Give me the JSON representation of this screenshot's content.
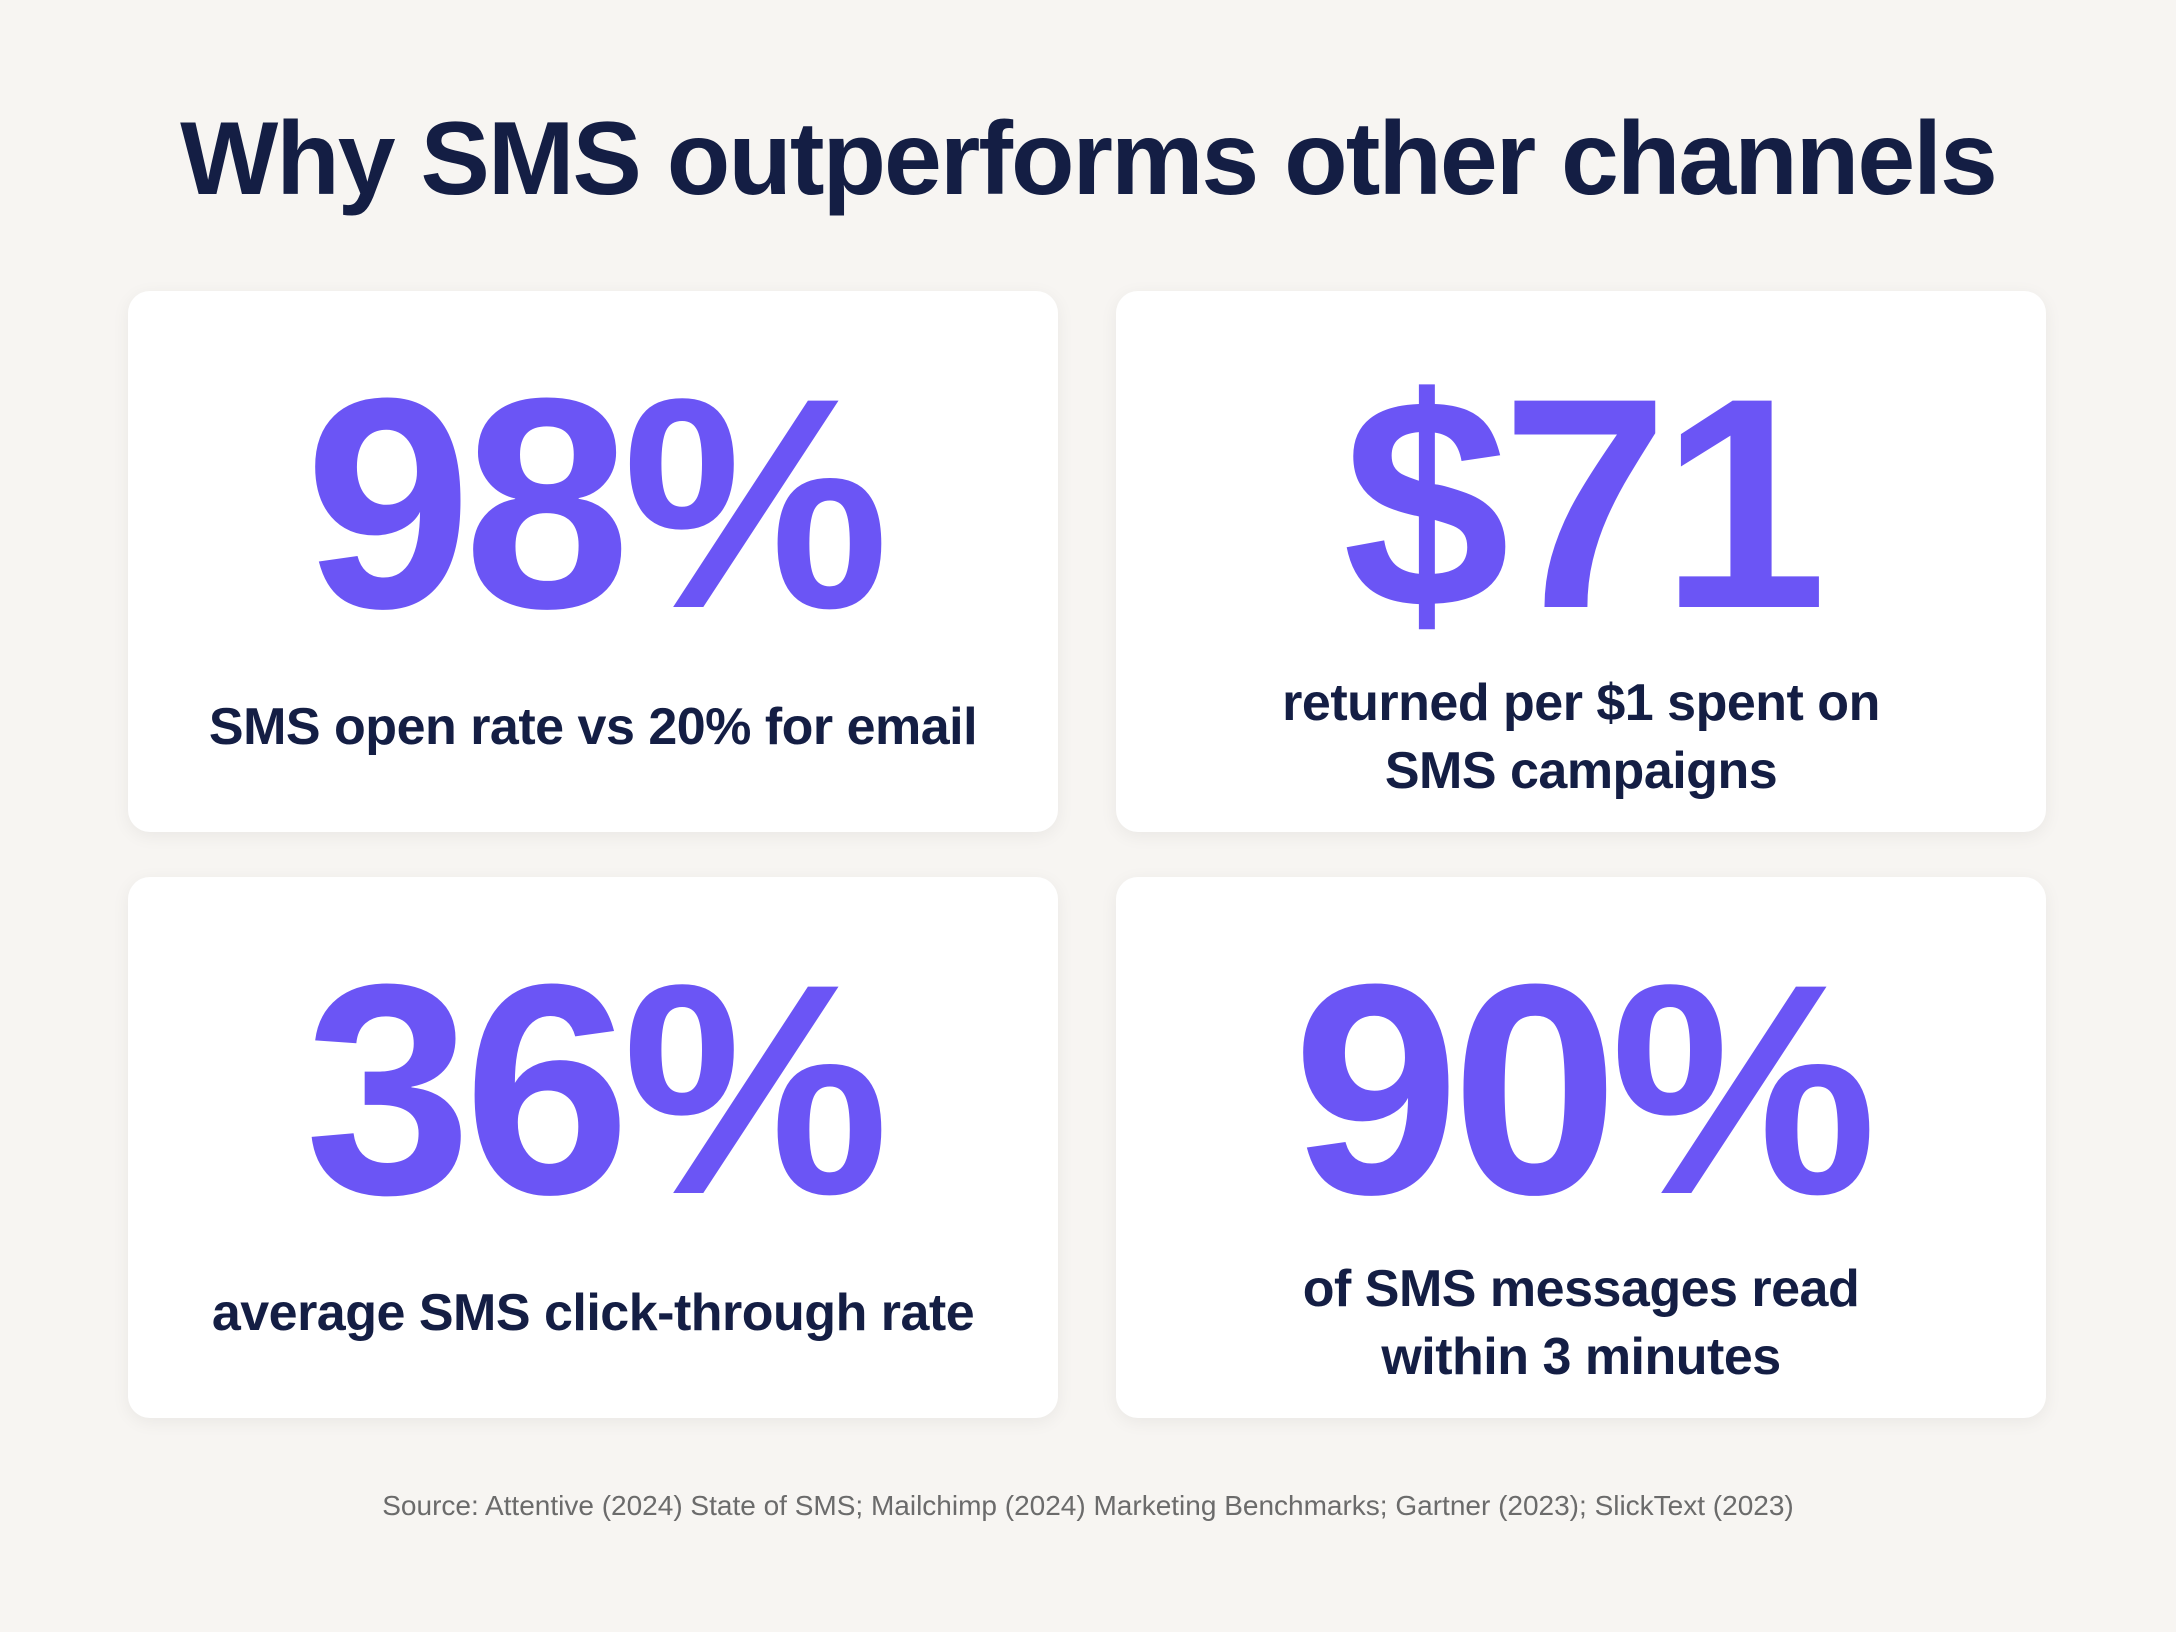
{
  "header": {
    "title": "Why SMS outperforms other channels"
  },
  "cards": [
    {
      "stat": "98%",
      "caption": [
        "SMS open rate vs 20% for email"
      ]
    },
    {
      "stat": "$71",
      "caption": [
        "returned per $1 spent on",
        "SMS campaigns"
      ]
    },
    {
      "stat": "36%",
      "caption": [
        "average SMS click-through rate"
      ]
    },
    {
      "stat": "90%",
      "caption": [
        "of SMS messages read",
        "within 3 minutes"
      ]
    }
  ],
  "footer": {
    "source": "Source: Attentive (2024) State of SMS; Mailchimp (2024) Marketing Benchmarks; Gartner (2023); SlickText (2023)"
  }
}
